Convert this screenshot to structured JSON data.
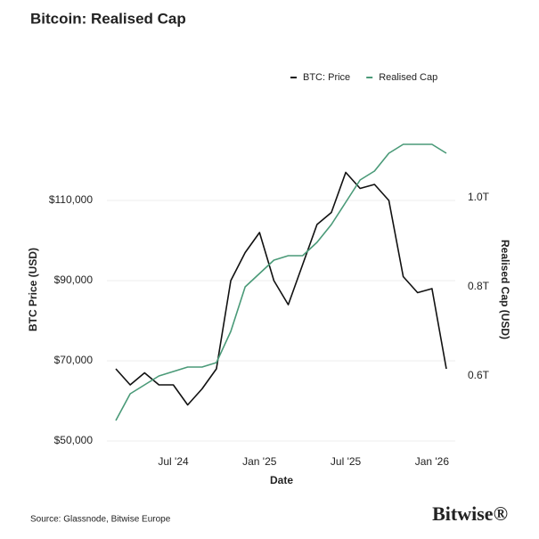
{
  "chart_data": {
    "type": "line",
    "title": "Bitcoin: Realised Cap",
    "x_label": "Date",
    "y_label": "BTC Price (USD)",
    "y2_label": "Realised Cap (USD)",
    "source": "Source: Glassnode, Bitwise Europe",
    "logo": "Bitwise®",
    "x": [
      "2024-03",
      "2024-04",
      "2024-05",
      "2024-06",
      "2024-07",
      "2024-08",
      "2024-09",
      "2024-10",
      "2024-11",
      "2024-12",
      "2025-01",
      "2025-02",
      "2025-03",
      "2025-04",
      "2025-05",
      "2025-06",
      "2025-07",
      "2025-08",
      "2025-09",
      "2025-10",
      "2025-11",
      "2025-12",
      "2026-01",
      "2026-02"
    ],
    "xlim": [
      "2024-03",
      "2026-02"
    ],
    "xticks": [
      {
        "value": "2024-07",
        "label": "Jul '24"
      },
      {
        "value": "2025-01",
        "label": "Jan '25"
      },
      {
        "value": "2025-07",
        "label": "Jul '25"
      },
      {
        "value": "2026-01",
        "label": "Jan '26"
      }
    ],
    "ylim": [
      50000,
      125000
    ],
    "yticks": [
      {
        "value": 50000,
        "label": "$50,000"
      },
      {
        "value": 70000,
        "label": "$70,000"
      },
      {
        "value": 90000,
        "label": "$90,000"
      },
      {
        "value": 110000,
        "label": "$110,000"
      }
    ],
    "y2lim": [
      0.454,
      1.129
    ],
    "y2ticks": [
      {
        "value": 0.6,
        "label": "0.6T"
      },
      {
        "value": 0.8,
        "label": "0.8T"
      },
      {
        "value": 1.0,
        "label": "1.0T"
      }
    ],
    "grid": true,
    "legend": "top-right",
    "series": [
      {
        "name": "BTC: Price",
        "color": "#111111",
        "values": [
          68000,
          64000,
          67000,
          64000,
          64000,
          59000,
          63000,
          68000,
          90000,
          97000,
          102000,
          90000,
          84000,
          94000,
          104000,
          107000,
          117000,
          113000,
          114000,
          110000,
          91000,
          87000,
          88000,
          68000
        ]
      },
      {
        "name": "Realised Cap",
        "color": "#4a9a78",
        "axis": "y2",
        "values": [
          0.5,
          0.56,
          0.58,
          0.6,
          0.61,
          0.62,
          0.62,
          0.63,
          0.7,
          0.8,
          0.83,
          0.86,
          0.87,
          0.87,
          0.9,
          0.94,
          0.99,
          1.04,
          1.06,
          1.1,
          1.12,
          1.12,
          1.12,
          1.1
        ]
      }
    ]
  }
}
